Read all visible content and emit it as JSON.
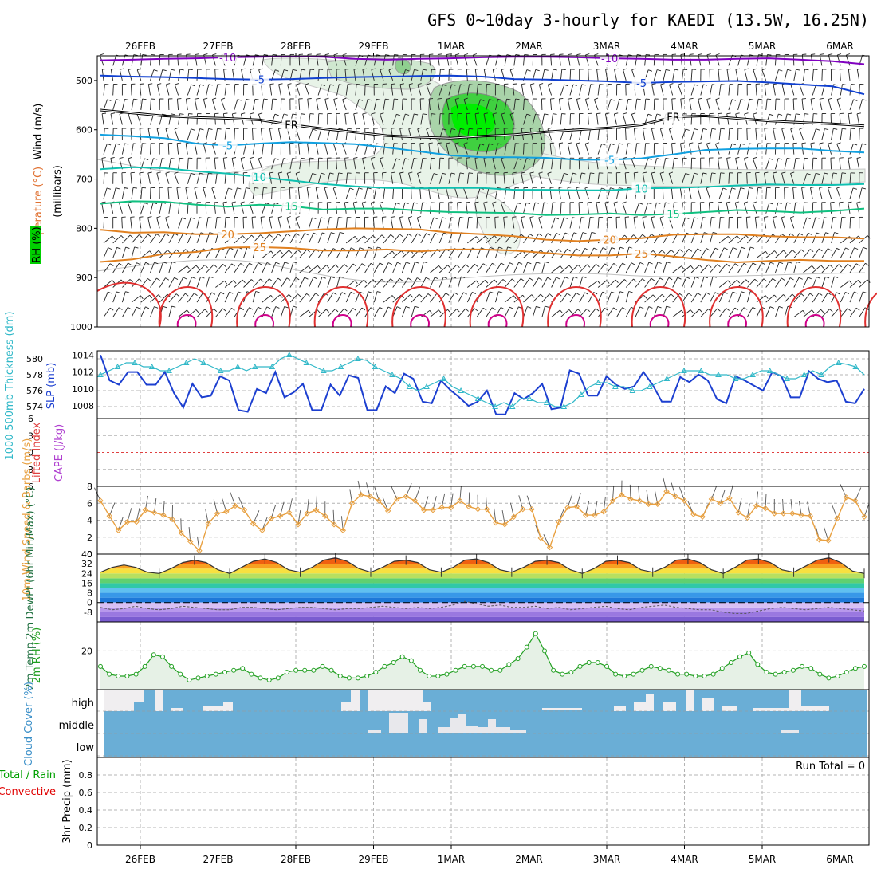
{
  "title": "GFS 0~10day 3-hourly for KAEDI (13.5W, 16.25N)",
  "dates": [
    "26FEB",
    "27FEB",
    "28FEB",
    "29FEB",
    "1MAR",
    "2MAR",
    "3MAR",
    "4MAR",
    "5MAR",
    "6MAR"
  ],
  "colors": {
    "rh_green": "#00e000",
    "temp_purple": "#8000c0",
    "temp_blue": "#1040d0",
    "temp_cyan": "#10a0e0",
    "temp_teal": "#10c0b0",
    "temp_green": "#10c080",
    "temp_orange": "#e08020",
    "temp_red": "#e03030",
    "slp": "#1c3fd0",
    "thickness": "#30b8c8",
    "cloud": "#6aaed6",
    "rh2m": "#22a022",
    "wind10": "#e8a040"
  },
  "chart_data": [
    {
      "type": "heatmap",
      "name": "upper-air",
      "ylabel_lines": [
        {
          "text": "Wind (m/s)",
          "color": "#000000"
        },
        {
          "text": "Temperature (°C)",
          "color": "#e07030"
        },
        {
          "text": "RH (%)",
          "color": "#00c000"
        }
      ],
      "ylabel_unit": "(millibars)",
      "y_ticks": [
        500,
        600,
        700,
        800,
        900,
        1000
      ],
      "ylim": [
        450,
        1000
      ],
      "contours": [
        {
          "label": "-10",
          "color": "#8000c0",
          "values": [
            459,
            458,
            456,
            455,
            453,
            452,
            451,
            452,
            456,
            458,
            456,
            455,
            453,
            452,
            452,
            453,
            455,
            456,
            458,
            458,
            456,
            455,
            458,
            461,
            467
          ]
        },
        {
          "label": "-5",
          "color": "#1040d0",
          "values": [
            490,
            492,
            493,
            495,
            497,
            498,
            497,
            495,
            493,
            492,
            491,
            490,
            492,
            497,
            498,
            500,
            502,
            505,
            503,
            502,
            501,
            504,
            508,
            512,
            528
          ]
        },
        {
          "label": "FR",
          "color": "#000000",
          "values": [
            560,
            566,
            572,
            575,
            577,
            580,
            590,
            598,
            605,
            612,
            615,
            617,
            613,
            610,
            604,
            600,
            596,
            590,
            574,
            572,
            577,
            582,
            585,
            588,
            592
          ]
        },
        {
          "label": "-5",
          "color": "#10a0e0",
          "values": [
            610,
            613,
            617,
            628,
            632,
            628,
            625,
            627,
            629,
            636,
            644,
            652,
            656,
            656,
            657,
            661,
            661,
            658,
            650,
            641,
            639,
            638,
            638,
            643,
            646
          ]
        },
        {
          "label": "10",
          "color": "#10c0b0",
          "values": [
            680,
            676,
            678,
            684,
            689,
            696,
            703,
            710,
            715,
            718,
            719,
            718,
            718,
            722,
            722,
            723,
            723,
            719,
            718,
            716,
            713,
            711,
            712,
            712,
            710
          ]
        },
        {
          "label": "15",
          "color": "#10c080",
          "values": [
            750,
            745,
            746,
            752,
            756,
            752,
            755,
            762,
            760,
            760,
            764,
            767,
            768,
            769,
            773,
            772,
            770,
            773,
            771,
            767,
            763,
            765,
            768,
            765,
            760
          ]
        },
        {
          "label": "20",
          "color": "#e08020",
          "values": [
            803,
            809,
            808,
            812,
            812,
            810,
            806,
            802,
            800,
            801,
            802,
            809,
            812,
            816,
            823,
            826,
            823,
            820,
            813,
            812,
            812,
            816,
            818,
            818,
            821
          ]
        },
        {
          "label": "25",
          "color": "#e08020",
          "values": [
            868,
            863,
            852,
            848,
            839,
            838,
            840,
            845,
            845,
            843,
            847,
            843,
            843,
            845,
            850,
            855,
            855,
            851,
            857,
            864,
            869,
            866,
            864,
            866,
            866
          ]
        }
      ]
    },
    {
      "type": "line",
      "name": "thickness-slp",
      "ylabel_left": "1000-500mb Thickness (dm)",
      "ylabel_right": "SLP (mb)",
      "y_left_ticks": [
        574,
        576,
        578,
        580
      ],
      "y_right_ticks": [
        1008,
        1010,
        1012,
        1014
      ],
      "ylim_left": [
        572.5,
        581
      ],
      "ylim_right": [
        1006.5,
        1014.5
      ],
      "series": [
        {
          "name": "SLP",
          "axis": "right",
          "values": [
            1014,
            1011,
            1010.5,
            1012,
            1012,
            1010.5,
            1010.5,
            1012,
            1009.5,
            1007.8,
            1010.6,
            1009,
            1009.2,
            1011.5,
            1011,
            1007.5,
            1007.3,
            1010,
            1009.5,
            1012,
            1009,
            1009.6,
            1010.6,
            1007.5,
            1007.5,
            1010.5,
            1009.2,
            1011.6,
            1011.3,
            1007.5,
            1007.5,
            1010.3,
            1009.5,
            1011.8,
            1011.2,
            1008.5,
            1008.3,
            1011,
            1009.9,
            1009,
            1008,
            1008.5,
            1009.8,
            1007,
            1007,
            1009.5,
            1008.8,
            1009.5,
            1010.6,
            1007.6,
            1007.8,
            1012.2,
            1011.8,
            1009.2,
            1009.2,
            1011.5,
            1010.5,
            1010,
            1010.3,
            1012,
            1010.5,
            1008.5,
            1008.5,
            1011.4,
            1010.8,
            1011.7,
            1011,
            1008.8,
            1008.3,
            1011.5,
            1011,
            1010.4,
            1009.8,
            1012,
            1011.5,
            1009,
            1009,
            1012.1,
            1011.2,
            1010.8,
            1011,
            1008.5,
            1008.3,
            1010
          ]
        },
        {
          "name": "1000-500mb Thickness",
          "axis": "left",
          "values": [
            578,
            578.5,
            579,
            579.5,
            579.5,
            579,
            579,
            578.5,
            578.5,
            579,
            579.5,
            580,
            579.5,
            579,
            578.5,
            578.5,
            579,
            578.5,
            579,
            579,
            579,
            580,
            580.5,
            580,
            579.5,
            579,
            578.5,
            578.5,
            579,
            579.5,
            580,
            579.8,
            579,
            578.5,
            578,
            577.5,
            576.5,
            576,
            576.5,
            577,
            577.5,
            576.5,
            576,
            575.5,
            575,
            574.5,
            574,
            574.5,
            574,
            575,
            575,
            574.5,
            574.5,
            574,
            574,
            574.5,
            575.5,
            576.5,
            577,
            577,
            576.5,
            576.5,
            576,
            576,
            576.5,
            577,
            577.5,
            578,
            578.5,
            578.5,
            578.5,
            578,
            578,
            578,
            577.5,
            577.5,
            578,
            578.5,
            578.5,
            578,
            577.5,
            577.5,
            578,
            578.5,
            578,
            579,
            579.5,
            579.3,
            579,
            578
          ]
        }
      ]
    },
    {
      "type": "line",
      "name": "instability",
      "ylabel_left": "Lifted Index",
      "ylabel_right": "CAPE (J/kg)",
      "y_ticks": [
        "6",
        "3",
        "0",
        "3",
        "6"
      ],
      "ylim": [
        -6,
        6
      ],
      "series": [
        {
          "name": "Lifted Index zero line",
          "values": [
            0
          ]
        }
      ]
    },
    {
      "type": "line",
      "name": "wind10m",
      "ylabel": "10m Wind Speed & Barbs (m/s)",
      "y_ticks": [
        0,
        2,
        4,
        6,
        8
      ],
      "ylim": [
        0,
        8
      ],
      "series": [
        {
          "name": "10m Wind Speed",
          "values": [
            6.3,
            4.5,
            2.8,
            3.8,
            3.8,
            5.2,
            4.9,
            4.6,
            4.1,
            2.5,
            1.5,
            0.4,
            3.6,
            4.8,
            5,
            5.7,
            5.2,
            3.6,
            2.8,
            4.2,
            4.5,
            4.9,
            3.5,
            4.8,
            5.2,
            4.5,
            3.5,
            2.8,
            6,
            7,
            6.8,
            6.3,
            5.1,
            6.5,
            6.8,
            6.3,
            5.2,
            5.2,
            5.5,
            5.5,
            6.3,
            5.6,
            5.3,
            5.3,
            3.7,
            3.5,
            4.4,
            5.3,
            5.3,
            1.9,
            0.8,
            3.8,
            5.5,
            5.6,
            4.6,
            4.6,
            5,
            6.3,
            7,
            6.5,
            6.3,
            5.9,
            5.9,
            7.4,
            6.8,
            6.3,
            4.7,
            4.4,
            6.5,
            6,
            6.6,
            4.9,
            4.3,
            5.7,
            5.4,
            4.8,
            4.8,
            4.8,
            4.6,
            4.5,
            1.7,
            1.6,
            4.2,
            6.7,
            6.3,
            4.4
          ]
        }
      ]
    },
    {
      "type": "area",
      "name": "temperature-2m",
      "ylabel": "2m Temp 2m DewPt (6hr Min/Max) (°C)",
      "y_ticks": [
        40,
        32,
        24,
        16,
        8,
        0,
        -8
      ],
      "ylim": [
        -16,
        40
      ],
      "series": [
        {
          "name": "2m Temp",
          "values": [
            25,
            29,
            31,
            29,
            25,
            24,
            28,
            33,
            35,
            33,
            27,
            24,
            29,
            34,
            36,
            33,
            27,
            25,
            29,
            35,
            37,
            34,
            28,
            25,
            29,
            34,
            35,
            33,
            27,
            25,
            29,
            35,
            36,
            33,
            27,
            25,
            29,
            34,
            35,
            33,
            27,
            24,
            28,
            34,
            35,
            33,
            27,
            25,
            29,
            35,
            36,
            33,
            27,
            24,
            29,
            35,
            36,
            33,
            27,
            25,
            30,
            35,
            37,
            33,
            26,
            24
          ]
        },
        {
          "name": "2m DewPt",
          "values": [
            -4,
            -6,
            -5,
            -3,
            -5,
            -6,
            -5,
            -3,
            -4,
            -5,
            -6,
            -6,
            -4,
            -4,
            -5,
            -6,
            -5,
            -4,
            -4,
            -5,
            -6,
            -5,
            -5,
            -4,
            -3,
            -4,
            -5,
            -4,
            -5,
            -4,
            -2,
            1,
            -1,
            -3,
            -2,
            -4,
            -4,
            -3,
            -5,
            -4,
            -6,
            -5,
            -4,
            -3,
            -5,
            -6,
            -4,
            -3,
            -2,
            -4,
            -5,
            -6,
            -6,
            -8,
            -9,
            -9,
            -7,
            -5,
            -4,
            -5,
            -6,
            -5,
            -4,
            -5,
            -6,
            -7
          ]
        }
      ]
    },
    {
      "type": "area",
      "name": "rh-2m",
      "ylabel": "2m RH (%)",
      "y_ticks": [
        20
      ],
      "ylim": [
        0,
        35
      ],
      "series": [
        {
          "name": "2m RH",
          "values": [
            12,
            8,
            7,
            7,
            8,
            12,
            18,
            17,
            12,
            8,
            5,
            6,
            7,
            8,
            9,
            10,
            11,
            8,
            6,
            5,
            6,
            9,
            10,
            10,
            10,
            12,
            10,
            7,
            6,
            6,
            7,
            9,
            12,
            14,
            17,
            15,
            10,
            7,
            7,
            8,
            10,
            12,
            12,
            12,
            10,
            10,
            13,
            16,
            22,
            29,
            20,
            10,
            8,
            9,
            12,
            14,
            14,
            12,
            8,
            7,
            8,
            10,
            12,
            11,
            10,
            8,
            8,
            7,
            7,
            8,
            11,
            14,
            17,
            19,
            13,
            9,
            8,
            9,
            10,
            12,
            11,
            8,
            6,
            7,
            9,
            11,
            12
          ]
        }
      ]
    },
    {
      "type": "bar",
      "name": "cloud-cover",
      "ylabel": "Cloud Cover (%)",
      "levels": [
        "high",
        "middle",
        "low"
      ]
    },
    {
      "type": "bar",
      "name": "precipitation",
      "ylabel_lines": [
        {
          "text": "Total / Rain",
          "color": "#00a000"
        },
        {
          "text": "Convective",
          "color": "#e00000"
        },
        {
          "text": "3hr Precip (mm)",
          "color": "#000000"
        }
      ],
      "y_ticks": [
        "0",
        "0.2",
        "0.4",
        "0.6",
        "0.8"
      ],
      "ylim": [
        0,
        1
      ],
      "run_total": "Run Total = 0",
      "values": []
    }
  ]
}
